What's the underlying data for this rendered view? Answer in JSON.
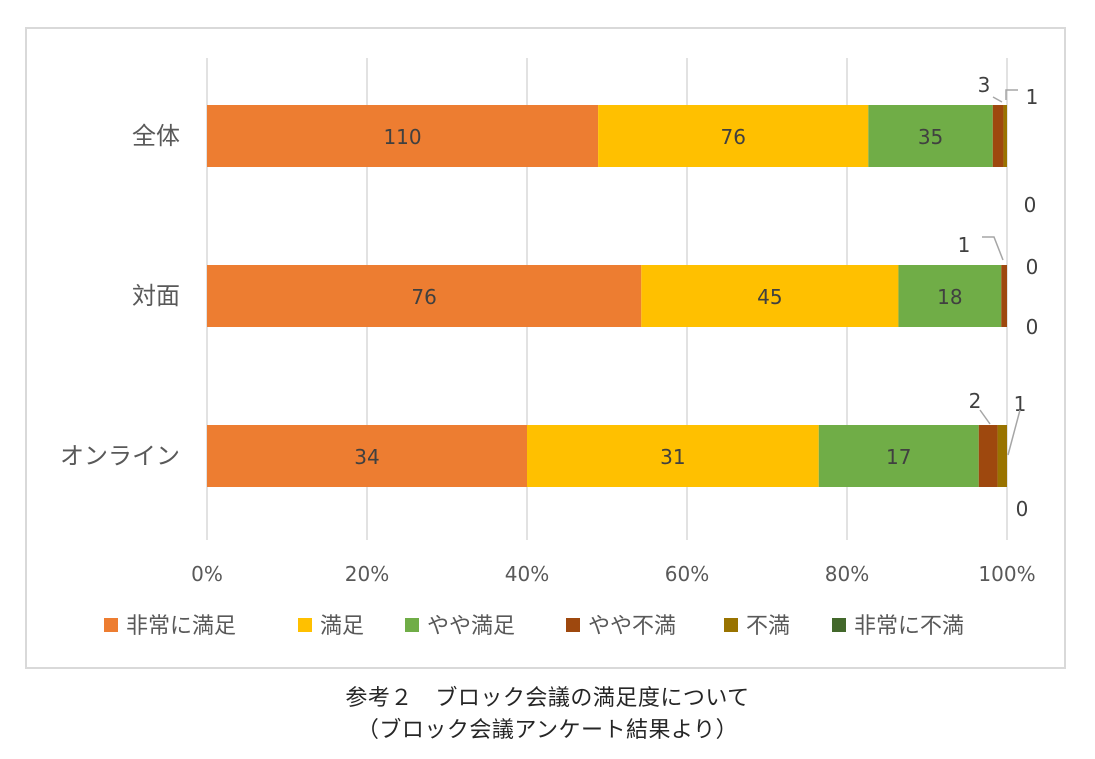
{
  "caption": {
    "line1": "参考２　ブロック会議の満足度について",
    "line2": "（ブロック会議アンケート結果より）"
  },
  "chart_data": {
    "type": "bar",
    "orientation": "horizontal",
    "stacked": "percent",
    "categories": [
      "全体",
      "対面",
      "オンライン"
    ],
    "series": [
      {
        "name": "非常に満足",
        "color": "#ED7D31",
        "values": [
          110,
          76,
          34
        ]
      },
      {
        "name": "満足",
        "color": "#FFC000",
        "values": [
          76,
          45,
          31
        ]
      },
      {
        "name": "やや満足",
        "color": "#70AD47",
        "values": [
          35,
          18,
          17
        ]
      },
      {
        "name": "やや不満",
        "color": "#9E480E",
        "values": [
          3,
          1,
          2
        ]
      },
      {
        "name": "不満",
        "color": "#997300",
        "values": [
          1,
          0,
          1
        ]
      },
      {
        "name": "非常に不満",
        "color": "#43682B",
        "values": [
          0,
          0,
          0
        ]
      }
    ],
    "x_ticks": [
      "0%",
      "20%",
      "40%",
      "60%",
      "80%",
      "100%"
    ],
    "xlim": [
      0,
      100
    ],
    "grid": "vertical",
    "legend_position": "bottom",
    "title": "",
    "xlabel": "",
    "ylabel": ""
  }
}
